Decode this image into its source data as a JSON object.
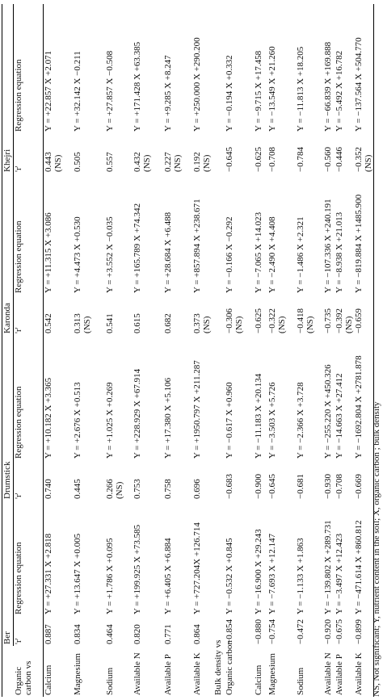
{
  "header": {
    "groups": [
      "Ber",
      "Drumstick",
      "Karonda",
      "Khejri"
    ],
    "r": "'r'",
    "equation": "Regression equation",
    "first_label": "Organic carbon vs"
  },
  "sections": [
    {
      "title": null,
      "rows": [
        {
          "label": "Calcium",
          "cells": [
            "0.887",
            "Y = +27.331 X +2.818",
            "0.740",
            "Y = +10.182 X +3.365",
            "0.542",
            "Y = +11.315 X +3.086",
            "0.443 (NS)",
            "Y = +22.857 X +2.071"
          ]
        },
        {
          "label": "Magnesium",
          "cells": [
            "0.834",
            "Y = +13.647 X +0.005",
            "0.445",
            "Y = +2.676 X +0.513",
            "0.313 (NS)",
            "Y = +4.473 X +0.530",
            "0.505",
            "Y = +32.142 X −0.211"
          ]
        },
        {
          "label": "Sodium",
          "cells": [
            "0.464",
            "Y = +1.786 X +0.095",
            "0.266 (NS)",
            "Y = +1.025 X +0.269",
            "0.541",
            "Y = +3.552 X −0.035",
            "0.557",
            "Y = +27.857 X −0.508"
          ]
        },
        {
          "label": "Available N",
          "cells": [
            "0.820",
            "Y = +199.925 X +73.585",
            "0.753",
            "Y = +228.929 X +67.914",
            "0.615",
            "Y = +165.789 X +74.342",
            "0.432 (NS)",
            "Y = +171.428 X +63.385"
          ]
        },
        {
          "label": "Available P",
          "cells": [
            "0.771",
            "Y = +6.405 X +6.884",
            "0.758",
            "Y = +17.380 X +5.106",
            "0.682",
            "Y = +28.684 X +6.488",
            "0.227 (NS)",
            "Y = +9.285 X +8.247"
          ]
        },
        {
          "label": "Available K",
          "cells": [
            "0.864",
            "Y = +727.204X +126.714",
            "0.696",
            "Y = +1950.797 X +211.287",
            "0.373 (NS)",
            "Y = +857.894 X +238.671",
            "0.192 (NS)",
            "Y = +250.000 X +290.200"
          ]
        }
      ]
    },
    {
      "title": "Bulk density vs",
      "rows": [
        {
          "label": "Organic carbon",
          "cells": [
            "−0.854",
            "Y = −0.532 X +0.845",
            "−0.683",
            "Y = −0.617 X +0.960",
            "−0.306 (NS)",
            "Y = −0.166 X −0.292",
            "−0.645",
            "Y = −0.194 X +0.332"
          ]
        },
        {
          "label": "Calcium",
          "cells": [
            "−0.880",
            "Y = −16.900 X +29.243",
            "−0.900",
            "Y = −11.183 X +20.134",
            "−0.625",
            "Y = −7.065 X +14.023",
            "−0.625",
            "Y = −9.715 X +17.458"
          ]
        },
        {
          "label": "Magnesium",
          "cells": [
            "−0.754",
            "Y = −7.693 X +12.147",
            "−0.645",
            "Y = −3.503 X +5.726",
            "−0.322 (NS)",
            "Y = −2.490 X +4.408",
            "−0.708",
            "Y = −13.549 X +21.260"
          ]
        },
        {
          "label": "Sodium",
          "cells": [
            "−0.472",
            "Y = −1.133 X +1.863",
            "−0.681",
            "Y = −2.366 X +3.728",
            "−0.418 (NS)",
            "Y = −1.486 X +2.321",
            "−0.784",
            "Y = −11.813 X +18.205"
          ]
        },
        {
          "label": "Available N",
          "cells": [
            "−0.920",
            "Y = −139.802 X +289.731",
            "−0.930",
            "Y = −255.220 X +450.326",
            "−0.735",
            "Y = −107.336 X +240.191",
            "−0.560",
            "Y = −66.839 X +169.888"
          ]
        },
        {
          "label": "Available P",
          "cells": [
            "−0.675",
            "Y = −3.497 X +12.423",
            "−0.708",
            "Y = −14.663 X +27.412",
            "−0.392 (NS)",
            "Y = −8.938 X +21.013",
            "−0.446",
            "Y = −5.492 X +16.782"
          ]
        },
        {
          "label": "Available K",
          "cells": [
            "−0.899",
            "Y = −471.614 X +860.812",
            "−0.669",
            "Y = −1692.804 X +2781.878",
            "−0.659",
            "Y = −819.884 X +1485.900",
            "−0.352 (NS)",
            "Y = −137.564 X +504.770"
          ]
        }
      ]
    }
  ],
  "footnote": "NS, Not significant; Y, nutrient content in the soil; X, organic carbon ; bulk density"
}
